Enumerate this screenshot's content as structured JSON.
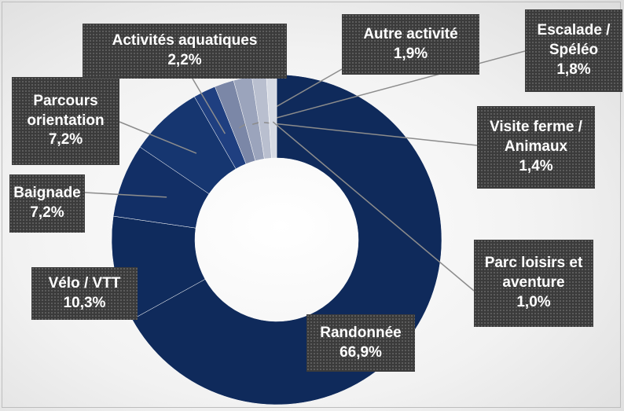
{
  "chart_data": {
    "type": "donut",
    "categories": [
      "Randonnée",
      "Vélo / VTT",
      "Baignade",
      "Parcours orientation",
      "Activités aquatiques",
      "Autre activité",
      "Escalade / Spéléo",
      "Visite ferme / Animaux",
      "Parc loisirs et aventure"
    ],
    "values": [
      66.9,
      10.3,
      7.2,
      7.2,
      2.2,
      1.9,
      1.8,
      1.4,
      1.0
    ],
    "value_labels": [
      "66,9%",
      "10,3%",
      "7,2%",
      "7,2%",
      "2,2%",
      "1,9%",
      "1,8%",
      "1,4%",
      "1,0%"
    ],
    "colors": [
      "#0f2a5b",
      "#0f2b5d",
      "#122f66",
      "#163670",
      "#1f3f80",
      "#7b87a7",
      "#9ba4bc",
      "#b9bfcf",
      "#d6dae3"
    ]
  }
}
